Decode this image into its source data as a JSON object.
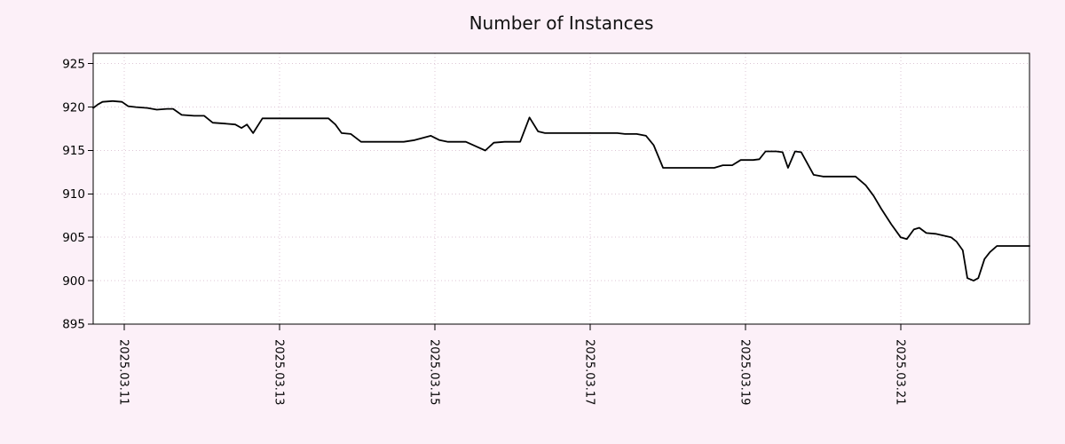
{
  "page": {
    "background": "#fcf0f8"
  },
  "chart_data": {
    "type": "line",
    "title": "Number of Instances",
    "xlabel": "",
    "ylabel": "",
    "legend": "none",
    "grid": true,
    "line_color": "#000000",
    "grid_color": "#ddc6d6",
    "plot_bg": "#ffffff",
    "frame_color": "#000000",
    "text_color": "#000000",
    "x_range": [
      10.6,
      22.66
    ],
    "y_range": [
      895,
      926.2
    ],
    "y_ticks": [
      895,
      900,
      905,
      910,
      915,
      920,
      925
    ],
    "x_ticks": [
      {
        "pos": 11,
        "label": "2025.03.11"
      },
      {
        "pos": 13,
        "label": "2025.03.13"
      },
      {
        "pos": 15,
        "label": "2025.03.15"
      },
      {
        "pos": 17,
        "label": "2025.03.17"
      },
      {
        "pos": 19,
        "label": "2025.03.19"
      },
      {
        "pos": 21,
        "label": "2025.03.21"
      }
    ],
    "series": [
      {
        "name": "instances",
        "points": [
          [
            10.6,
            919.9
          ],
          [
            10.66,
            920.3
          ],
          [
            10.72,
            920.6
          ],
          [
            10.85,
            920.7
          ],
          [
            10.97,
            920.6
          ],
          [
            11.05,
            920.1
          ],
          [
            11.15,
            920.0
          ],
          [
            11.3,
            919.9
          ],
          [
            11.42,
            919.7
          ],
          [
            11.55,
            919.8
          ],
          [
            11.63,
            919.8
          ],
          [
            11.74,
            919.1
          ],
          [
            11.9,
            919.0
          ],
          [
            12.03,
            919.0
          ],
          [
            12.14,
            918.2
          ],
          [
            12.3,
            918.1
          ],
          [
            12.43,
            918.0
          ],
          [
            12.51,
            917.6
          ],
          [
            12.58,
            918.0
          ],
          [
            12.66,
            917.0
          ],
          [
            12.78,
            918.7
          ],
          [
            13.0,
            918.7
          ],
          [
            13.3,
            918.7
          ],
          [
            13.63,
            918.7
          ],
          [
            13.72,
            918.0
          ],
          [
            13.8,
            917.0
          ],
          [
            13.92,
            916.9
          ],
          [
            14.05,
            916.0
          ],
          [
            14.3,
            916.0
          ],
          [
            14.6,
            916.0
          ],
          [
            14.74,
            916.2
          ],
          [
            14.95,
            916.7
          ],
          [
            15.06,
            916.2
          ],
          [
            15.17,
            916.0
          ],
          [
            15.4,
            916.0
          ],
          [
            15.55,
            915.4
          ],
          [
            15.65,
            915.0
          ],
          [
            15.76,
            915.9
          ],
          [
            15.9,
            916.0
          ],
          [
            16.1,
            916.0
          ],
          [
            16.22,
            918.8
          ],
          [
            16.33,
            917.2
          ],
          [
            16.42,
            917.0
          ],
          [
            16.7,
            917.0
          ],
          [
            17.0,
            917.0
          ],
          [
            17.35,
            917.0
          ],
          [
            17.45,
            916.9
          ],
          [
            17.6,
            916.9
          ],
          [
            17.72,
            916.7
          ],
          [
            17.82,
            915.6
          ],
          [
            17.94,
            913.0
          ],
          [
            18.1,
            913.0
          ],
          [
            18.4,
            913.0
          ],
          [
            18.6,
            913.0
          ],
          [
            18.71,
            913.3
          ],
          [
            18.83,
            913.3
          ],
          [
            18.94,
            913.9
          ],
          [
            19.1,
            913.9
          ],
          [
            19.18,
            914.0
          ],
          [
            19.26,
            914.9
          ],
          [
            19.4,
            914.9
          ],
          [
            19.48,
            914.8
          ],
          [
            19.55,
            913.0
          ],
          [
            19.64,
            914.9
          ],
          [
            19.72,
            914.8
          ],
          [
            19.8,
            913.5
          ],
          [
            19.88,
            912.2
          ],
          [
            20.0,
            912.0
          ],
          [
            20.2,
            912.0
          ],
          [
            20.42,
            912.0
          ],
          [
            20.55,
            911.0
          ],
          [
            20.65,
            909.8
          ],
          [
            20.75,
            908.3
          ],
          [
            20.88,
            906.5
          ],
          [
            21.0,
            905.0
          ],
          [
            21.08,
            904.8
          ],
          [
            21.17,
            905.9
          ],
          [
            21.24,
            906.1
          ],
          [
            21.33,
            905.5
          ],
          [
            21.45,
            905.4
          ],
          [
            21.55,
            905.2
          ],
          [
            21.65,
            905.0
          ],
          [
            21.72,
            904.5
          ],
          [
            21.8,
            903.5
          ],
          [
            21.86,
            900.3
          ],
          [
            21.94,
            900.0
          ],
          [
            22.0,
            900.3
          ],
          [
            22.08,
            902.5
          ],
          [
            22.15,
            903.3
          ],
          [
            22.24,
            904.0
          ],
          [
            22.45,
            904.0
          ],
          [
            22.66,
            904.0
          ]
        ]
      }
    ]
  }
}
